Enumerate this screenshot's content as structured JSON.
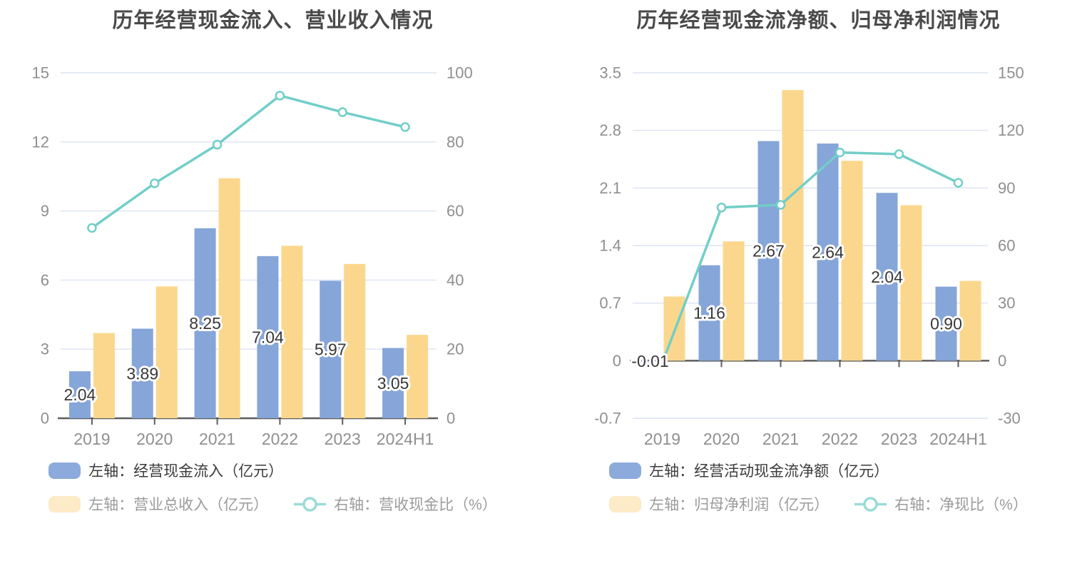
{
  "page": {
    "background": "#ffffff"
  },
  "colors": {
    "bar_blue": "#86a5d8",
    "bar_yellow": "#fbd78d",
    "line_teal": "#72cec8",
    "legend_blue_swatch": "#8caadc",
    "legend_yellow_swatch": "#fdeac7",
    "legend_line_marker": "#9adcd7",
    "gridline": "#dce3f2",
    "axis_line": "#5e5e5e",
    "axis_label": "#8f8f8f",
    "bar_label": "#383838",
    "title_text": "#4a4a4a"
  },
  "chart_data": [
    {
      "type": "combo-bar-line",
      "title": "历年经营现金流入、营业收入情况",
      "categories": [
        "2019",
        "2020",
        "2021",
        "2022",
        "2023",
        "2024H1"
      ],
      "grid": true,
      "legend_position": "bottom",
      "left_axis": {
        "min": 0,
        "max": 15,
        "tick_labels": [
          "15",
          "12",
          "9",
          "6",
          "3",
          "0"
        ]
      },
      "right_axis": {
        "min": 0,
        "max": 100,
        "tick_labels": [
          "100",
          "80",
          "60",
          "40",
          "20",
          "0"
        ]
      },
      "series": [
        {
          "name": "左轴：经营现金流入（亿元）",
          "sem": "operating-cash-inflow",
          "type": "bar",
          "axis": "left",
          "color": "#86a5d8",
          "legend_swatch": "#8caadc",
          "legend_text": "dark",
          "values": [
            2.04,
            3.89,
            8.25,
            7.04,
            5.97,
            3.05
          ],
          "labels": [
            "2.04",
            "3.89",
            "8.25",
            "7.04",
            "5.97",
            "3.05"
          ]
        },
        {
          "name": "左轴：营业总收入（亿元）",
          "sem": "total-revenue",
          "type": "bar",
          "axis": "left",
          "color": "#fbd78d",
          "legend_swatch": "#fdeac7",
          "legend_text": "muted",
          "values": [
            3.7,
            5.72,
            10.42,
            7.49,
            6.7,
            3.62
          ]
        },
        {
          "name": "右轴：营收现金比（%）",
          "sem": "revenue-cash-ratio",
          "type": "line",
          "axis": "right",
          "color": "#72cec8",
          "legend_marker": "#9adcd7",
          "legend_text": "muted",
          "values": [
            55.1,
            68.0,
            79.2,
            93.4,
            88.6,
            84.3
          ]
        }
      ]
    },
    {
      "type": "combo-bar-line",
      "title": "历年经营现金流净额、归母净利润情况",
      "categories": [
        "2019",
        "2020",
        "2021",
        "2022",
        "2023",
        "2024H1"
      ],
      "grid": true,
      "legend_position": "bottom",
      "left_axis": {
        "min": -0.7,
        "max": 3.5,
        "tick_labels": [
          "3.5",
          "2.8",
          "2.1",
          "1.4",
          "0.7",
          "0",
          "-0.7"
        ]
      },
      "right_axis": {
        "min": -30,
        "max": 150,
        "tick_labels": [
          "150",
          "120",
          "90",
          "60",
          "30",
          "0",
          "-30"
        ]
      },
      "series": [
        {
          "name": "左轴：经营活动现金流净额（亿元）",
          "sem": "operating-net-cashflow",
          "type": "bar",
          "axis": "left",
          "color": "#86a5d8",
          "legend_swatch": "#8caadc",
          "legend_text": "dark",
          "values": [
            -0.01,
            1.16,
            2.67,
            2.64,
            2.04,
            0.9
          ],
          "labels": [
            "-0.01",
            "1.16",
            "2.67",
            "2.64",
            "2.04",
            "0.90"
          ]
        },
        {
          "name": "左轴：归母净利润（亿元）",
          "sem": "net-profit",
          "type": "bar",
          "axis": "left",
          "color": "#fbd78d",
          "legend_swatch": "#fdeac7",
          "legend_text": "muted",
          "values": [
            0.78,
            1.45,
            3.29,
            2.43,
            1.89,
            0.97
          ]
        },
        {
          "name": "右轴：净现比（%）",
          "sem": "net-cash-ratio",
          "type": "line",
          "axis": "right",
          "color": "#72cec8",
          "legend_marker": "#9adcd7",
          "legend_text": "muted",
          "values": [
            -1.3,
            79.8,
            81.2,
            108.5,
            107.6,
            92.7
          ]
        }
      ]
    }
  ]
}
